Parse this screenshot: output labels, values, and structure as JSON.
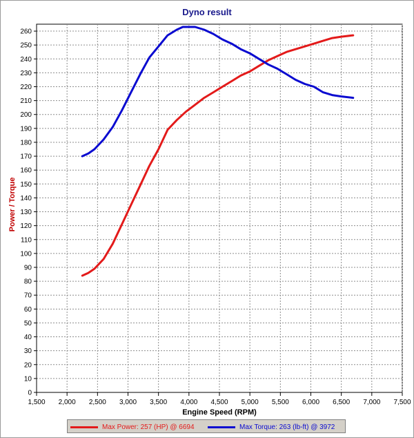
{
  "colors": {
    "power": "#e31a1a",
    "torque": "#0a0ad0",
    "title": "#1a1a8c",
    "ylabel": "#c00000",
    "legend_bg": "#d4d0c8"
  },
  "chart_data": {
    "type": "line",
    "title": "Dyno result",
    "xlabel": "Engine Speed (RPM)",
    "ylabel": "Power / Torque",
    "xlim": [
      1500,
      7500
    ],
    "ylim": [
      0,
      265
    ],
    "xticks": [
      1500,
      2000,
      2500,
      3000,
      3500,
      4000,
      4500,
      5000,
      5500,
      6000,
      6500,
      7000,
      7500
    ],
    "xtick_labels": [
      "1,500",
      "2,000",
      "2,500",
      "3,000",
      "3,500",
      "4,000",
      "4,500",
      "5,000",
      "5,500",
      "6,000",
      "6,500",
      "7,000",
      "7,500"
    ],
    "yticks": [
      0,
      10,
      20,
      30,
      40,
      50,
      60,
      70,
      80,
      90,
      100,
      110,
      120,
      130,
      140,
      150,
      160,
      170,
      180,
      190,
      200,
      210,
      220,
      230,
      240,
      250,
      260
    ],
    "grid": true,
    "legend_position": "bottom",
    "series": [
      {
        "name": "Max Power: 257 (HP) @ 6694",
        "color": "#e31a1a",
        "x": [
          2250,
          2350,
          2450,
          2600,
          2750,
          2900,
          3050,
          3200,
          3350,
          3500,
          3650,
          3800,
          3950,
          4100,
          4250,
          4400,
          4550,
          4700,
          4850,
          5000,
          5150,
          5300,
          5450,
          5600,
          5750,
          5900,
          6050,
          6200,
          6350,
          6500,
          6694
        ],
        "y": [
          84,
          86,
          89,
          96,
          107,
          121,
          135,
          149,
          163,
          175,
          189,
          196,
          202,
          207,
          212,
          216,
          220,
          224,
          228,
          231,
          235,
          239,
          242,
          245,
          247,
          249,
          251,
          253,
          255,
          256,
          257
        ]
      },
      {
        "name": "Max Torque: 263 (lb-ft) @ 3972",
        "color": "#0a0ad0",
        "x": [
          2250,
          2350,
          2450,
          2600,
          2750,
          2900,
          3050,
          3200,
          3350,
          3500,
          3650,
          3800,
          3900,
          3972,
          4100,
          4250,
          4400,
          4550,
          4700,
          4850,
          5000,
          5150,
          5300,
          5450,
          5600,
          5750,
          5900,
          6050,
          6200,
          6350,
          6500,
          6694
        ],
        "y": [
          170,
          172,
          175,
          182,
          191,
          203,
          216,
          229,
          241,
          249,
          257,
          261,
          263,
          263,
          263,
          261,
          258,
          254,
          251,
          247,
          244,
          240,
          236,
          233,
          229,
          225,
          222,
          220,
          216,
          214,
          213,
          212
        ]
      }
    ]
  }
}
